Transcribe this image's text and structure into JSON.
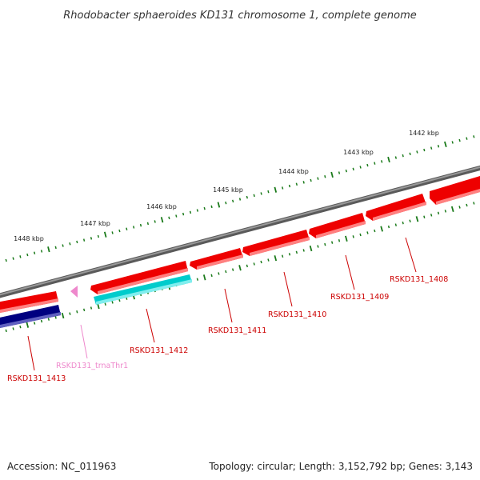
{
  "title": "Rhodobacter sphaeroides KD131 chromosome 1, complete genome",
  "scale_labels": [
    {
      "kbp": 1442,
      "text": "1442 kbp"
    },
    {
      "kbp": 1443,
      "text": "1443 kbp"
    },
    {
      "kbp": 1444,
      "text": "1444 kbp"
    },
    {
      "kbp": 1445,
      "text": "1445 kbp"
    },
    {
      "kbp": 1446,
      "text": "1446 kbp"
    },
    {
      "kbp": 1447,
      "text": "1447 kbp"
    },
    {
      "kbp": 1448,
      "text": "1448 kbp"
    }
  ],
  "genes": [
    {
      "id": "RSKD131_1408",
      "label": "RSKD131_1408",
      "type": "CDS",
      "strand": "reverse",
      "color": "#ee0000",
      "label_color": "#cc0000"
    },
    {
      "id": "RSKD131_1409",
      "label": "RSKD131_1409",
      "type": "CDS",
      "strand": "reverse",
      "color": "#ee0000",
      "label_color": "#cc0000"
    },
    {
      "id": "RSKD131_1410",
      "label": "RSKD131_1410",
      "type": "CDS",
      "strand": "reverse",
      "color": "#ee0000",
      "label_color": "#cc0000"
    },
    {
      "id": "RSKD131_1411",
      "label": "RSKD131_1411",
      "type": "CDS",
      "strand": "reverse",
      "color": "#ee0000",
      "label_color": "#cc0000"
    },
    {
      "id": "RSKD131_1412",
      "label": "RSKD131_1412",
      "type": "CDS",
      "strand": "reverse",
      "color": "#ee0000",
      "label_color": "#cc0000"
    },
    {
      "id": "RSKD131_tRNA_Thr",
      "label": "RSKD131_trnaThr1",
      "type": "tRNA",
      "strand": "forward",
      "color": "#ee88cc",
      "label_color": "#ee88cc"
    },
    {
      "id": "RSKD131_1413",
      "label": "RSKD131_1413",
      "type": "CDS",
      "strand": "forward",
      "color": "#ee0000",
      "label_color": "#cc0000"
    }
  ],
  "colors": {
    "backbone": "#808080",
    "cds": "#ee0000",
    "trna": "#ee88cc",
    "track_cyan": "#00cccc",
    "track_navy": "#000080",
    "ticks": "#1a7a1a"
  },
  "footer": {
    "accession": "Accession: NC_011963",
    "summary": "Topology: circular; Length: 3,152,792 bp; Genes: 3,143"
  }
}
